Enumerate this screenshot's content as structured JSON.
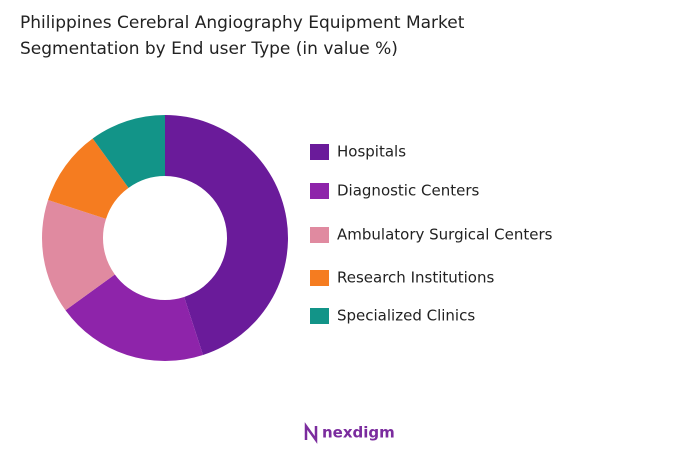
{
  "chart_data": {
    "type": "donut",
    "title": "Philippines Cerebral Angiography Equipment  Market Segmentation by End user Type (in value %)",
    "categories": [
      "Hospitals",
      "Diagnostic Centers",
      "Ambulatory Surgical Centers",
      "Research Institutions",
      "Specialized Clinics"
    ],
    "values": [
      45,
      20,
      15,
      10,
      10
    ],
    "colors": [
      "#6a1b9a",
      "#8e24aa",
      "#e08aa0",
      "#f57c20",
      "#129488"
    ],
    "legend": "right"
  },
  "brand": "nexdigm"
}
